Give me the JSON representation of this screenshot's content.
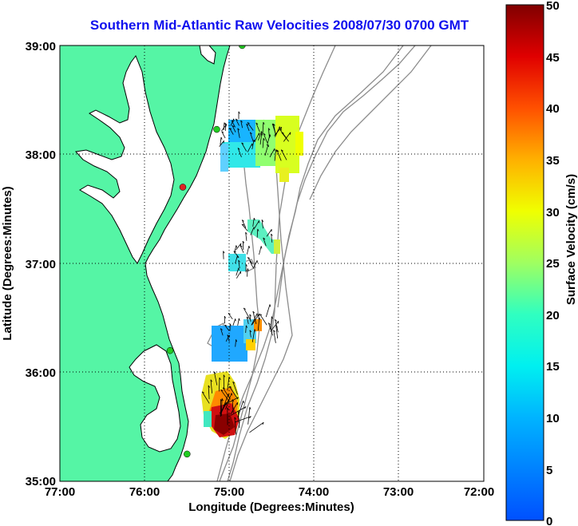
{
  "title": "Southern Mid-Atlantic Raw Velocities 2008/07/30 0700 GMT",
  "x_axis": {
    "label": "Longitude (Degrees:Minutes)",
    "ticks": [
      "77:00",
      "76:00",
      "75:00",
      "74:00",
      "73:00",
      "72:00"
    ]
  },
  "y_axis": {
    "label": "Latitude (Degrees:Minutes)",
    "ticks": [
      "39:00",
      "38:00",
      "37:00",
      "36:00",
      "35:00"
    ]
  },
  "colorbar": {
    "label": "Surface Velocity (cm/s)",
    "ticks": [
      "50",
      "45",
      "40",
      "35",
      "30",
      "25",
      "20",
      "15",
      "10",
      "5",
      "0"
    ],
    "range": [
      0,
      50
    ],
    "colormap": "jet"
  },
  "colors": {
    "land": "#55f5a5",
    "bathymetry": "#8c8c8c",
    "coastline": "#000000",
    "title": "#1010ee",
    "station": "#22cc22",
    "station_offline": "#dd2222"
  },
  "map": {
    "lon_range": [
      -77,
      -72
    ],
    "lat_range": [
      35,
      39
    ],
    "grid": "dotted"
  },
  "velocity_patches": [
    {
      "name": "delmarva-north-west",
      "lon": -74.95,
      "lat": 38.2,
      "speed": 10
    },
    {
      "name": "delmarva-north-mid",
      "lon": -74.7,
      "lat": 38.1,
      "speed": 18
    },
    {
      "name": "delmarva-north-east",
      "lon": -74.45,
      "lat": 38.05,
      "speed": 24
    },
    {
      "name": "mid-shelf",
      "lon": -74.65,
      "lat": 37.2,
      "speed": 14
    },
    {
      "name": "mid-shelf-small",
      "lon": -74.9,
      "lat": 37.0,
      "speed": 12
    },
    {
      "name": "hatteras-north",
      "lon": -74.9,
      "lat": 36.35,
      "speed": 9
    },
    {
      "name": "hatteras-north-edge",
      "lon": -74.6,
      "lat": 36.4,
      "speed": 30
    },
    {
      "name": "hatteras-south",
      "lon": -75.05,
      "lat": 35.75,
      "speed": 32
    },
    {
      "name": "hatteras-core",
      "lon": -74.95,
      "lat": 35.55,
      "speed": 45
    }
  ],
  "stations": [
    {
      "lon": -74.85,
      "lat": 39.0,
      "online": true
    },
    {
      "lon": -75.15,
      "lat": 38.23,
      "online": true
    },
    {
      "lon": -75.55,
      "lat": 37.7,
      "online": false
    },
    {
      "lon": -75.7,
      "lat": 36.2,
      "online": true
    },
    {
      "lon": -75.5,
      "lat": 35.25,
      "online": true
    }
  ]
}
